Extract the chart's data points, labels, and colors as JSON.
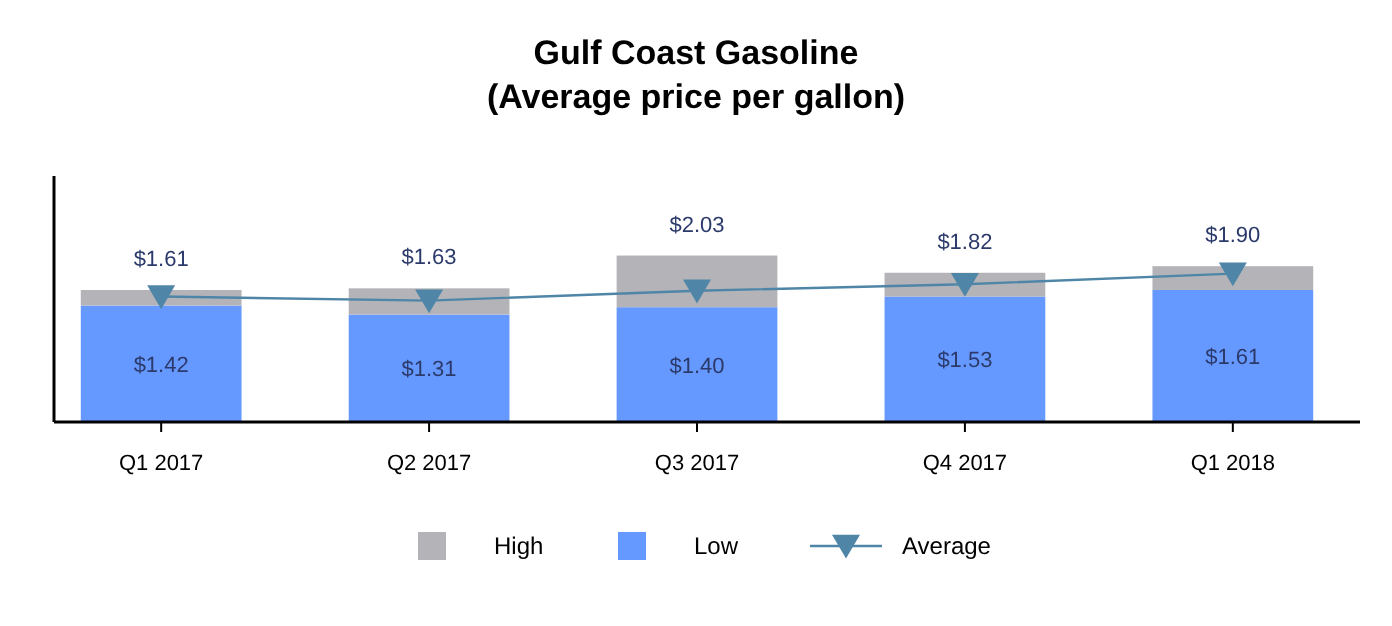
{
  "chart_data": {
    "type": "bar",
    "title": "Gulf Coast Gasoline\n(Average price per gallon)",
    "categories": [
      "Q1 2017",
      "Q2 2017",
      "Q3 2017",
      "Q4 2017",
      "Q1 2018"
    ],
    "stacked": true,
    "series": [
      {
        "name": "Low",
        "color": "#6699ff",
        "values": [
          1.42,
          1.31,
          1.4,
          1.53,
          1.61
        ],
        "value_labels": [
          "$1.42",
          "$1.31",
          "$1.40",
          "$1.53",
          "$1.61"
        ]
      },
      {
        "name": "High",
        "color": "#b4b4b8",
        "values": [
          0.19,
          0.32,
          0.63,
          0.29,
          0.29
        ]
      },
      {
        "name": "Average",
        "type": "line",
        "color": "#4f86a8",
        "values": [
          1.53,
          1.48,
          1.6,
          1.68,
          1.81
        ],
        "marker": "triangle",
        "line_style": "solid"
      }
    ],
    "totals": [
      "$1.61",
      "$1.63",
      "$2.03",
      "$1.82",
      "$1.90"
    ],
    "ylim": [
      0,
      3
    ],
    "tick_labels": "x",
    "legend": "bottom"
  }
}
